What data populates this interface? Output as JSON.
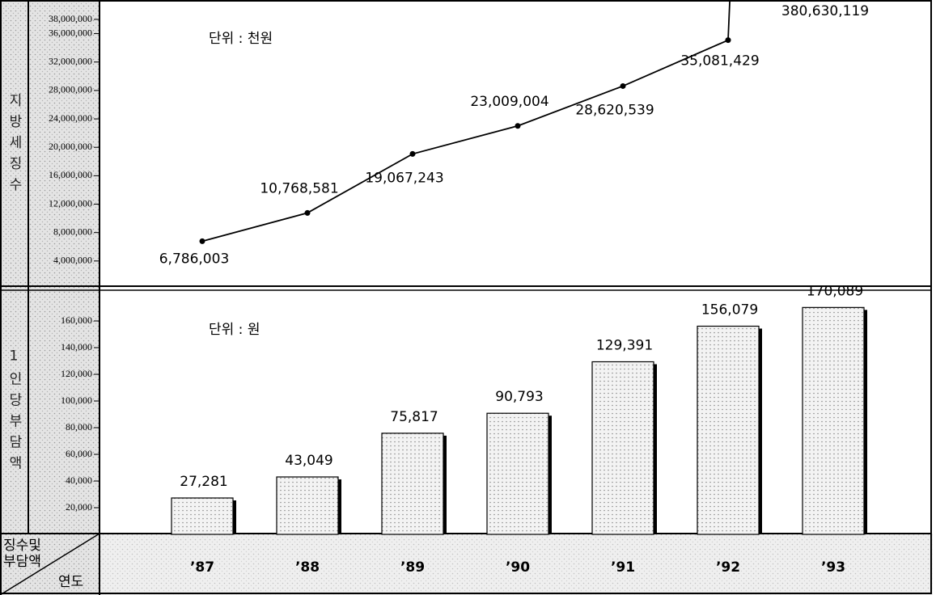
{
  "chart_data": [
    {
      "type": "line",
      "y_label": "지방세징수",
      "unit_note": "단위 : 천원",
      "categories": [
        "’87",
        "’88",
        "’89",
        "’90",
        "’91",
        "’92",
        "’93"
      ],
      "values": [
        6786003,
        10768581,
        19067243,
        23009004,
        28620539,
        35081429,
        380630119
      ],
      "value_labels": [
        "6,786,003",
        "10,768,581",
        "19,067,243",
        "23,009,004",
        "28,620,539",
        "35,081,429",
        "380,630,119"
      ],
      "color": "#000000",
      "ylim": [
        0,
        38000000
      ],
      "yticks": [
        {
          "value": 4000000,
          "label": "4,000,000"
        },
        {
          "value": 8000000,
          "label": "8,000,000"
        },
        {
          "value": 12000000,
          "label": "12,000,000"
        },
        {
          "value": 16000000,
          "label": "16,000,000"
        },
        {
          "value": 20000000,
          "label": "20,000,000"
        },
        {
          "value": 24000000,
          "label": "24,000,000"
        },
        {
          "value": 28000000,
          "label": "28,000,000"
        },
        {
          "value": 32000000,
          "label": "32,000,000"
        },
        {
          "value": 36000000,
          "label": "36,000,000"
        },
        {
          "value": 38000000,
          "label": "38,000,000"
        }
      ]
    },
    {
      "type": "bar",
      "y_label": "1인당부담액",
      "unit_note": "단위 : 원",
      "categories": [
        "’87",
        "’88",
        "’89",
        "’90",
        "’91",
        "’92",
        "’93"
      ],
      "values": [
        27281,
        43049,
        75817,
        90793,
        129391,
        156079,
        170089
      ],
      "value_labels": [
        "27,281",
        "43,049",
        "75,817",
        "90,793",
        "129,391",
        "156,079",
        "170,089"
      ],
      "color": "#8a8a8a",
      "ylim": [
        0,
        180000
      ],
      "yticks": [
        {
          "value": 20000,
          "label": "20,000"
        },
        {
          "value": 40000,
          "label": "40,000"
        },
        {
          "value": 60000,
          "label": "60,000"
        },
        {
          "value": 80000,
          "label": "80,000"
        },
        {
          "value": 100000,
          "label": "100,000"
        },
        {
          "value": 120000,
          "label": "120,000"
        },
        {
          "value": 140000,
          "label": "140,000"
        },
        {
          "value": 160000,
          "label": "160,000"
        }
      ]
    }
  ],
  "corner": {
    "top": [
      "징수및",
      "부담액"
    ],
    "bottom": "연도"
  }
}
